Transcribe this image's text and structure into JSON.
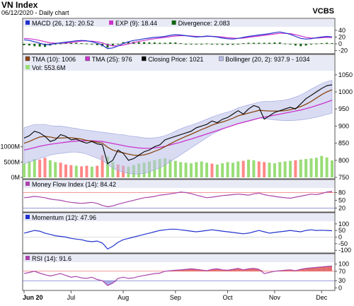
{
  "header": {
    "title": "VN Index",
    "subtitle": "06/12/2020 - Daily chart",
    "brand": "VCBS"
  },
  "chart_data": [
    {
      "type": "line",
      "panel": "macd",
      "legend": [
        "MACD (26, 12): 20.52",
        "EXP (9): 18.44",
        "Divergence: 2.083"
      ],
      "yticks": [
        "40",
        "20",
        "0",
        "-20"
      ],
      "ylim": [
        -25,
        48
      ],
      "colors": {
        "macd": "#2233cc",
        "exp": "#cc33cc",
        "div": "#116611"
      },
      "series": [
        {
          "name": "MACD",
          "values": [
            12,
            10,
            6,
            2,
            -3,
            -2,
            1,
            3,
            5,
            7,
            9,
            10,
            9,
            6,
            2,
            -4,
            -14,
            -12,
            -6,
            1,
            6,
            10,
            12,
            15,
            17,
            19,
            20,
            22,
            25,
            27,
            26,
            24,
            22,
            20,
            21,
            23,
            22,
            20,
            17,
            15,
            14,
            16,
            19,
            22,
            24,
            26,
            28,
            30,
            33,
            35,
            32,
            28,
            22,
            16,
            14,
            15,
            18,
            20,
            22,
            20.52
          ]
        },
        {
          "name": "EXP",
          "values": [
            16,
            15,
            13,
            10,
            6,
            3,
            2,
            2,
            3,
            4,
            6,
            8,
            8,
            8,
            6,
            3,
            -3,
            -6,
            -6,
            -4,
            0,
            4,
            7,
            10,
            13,
            15,
            17,
            19,
            21,
            23,
            24,
            24,
            23,
            22,
            21,
            22,
            22,
            21,
            20,
            18,
            17,
            16,
            17,
            19,
            21,
            23,
            25,
            27,
            29,
            31,
            31,
            30,
            27,
            23,
            19,
            17,
            17,
            18,
            19,
            18.44
          ]
        },
        {
          "name": "Divergence",
          "values": [
            -4,
            -5,
            -7,
            -8,
            -9,
            -5,
            -1,
            1,
            2,
            3,
            3,
            2,
            1,
            -2,
            -4,
            -7,
            -11,
            -6,
            0,
            5,
            6,
            6,
            5,
            5,
            4,
            4,
            3,
            3,
            4,
            4,
            2,
            0,
            -1,
            -2,
            0,
            1,
            0,
            -1,
            -3,
            -3,
            -3,
            0,
            2,
            3,
            3,
            3,
            3,
            3,
            4,
            4,
            1,
            -2,
            -5,
            -7,
            -5,
            -2,
            1,
            2,
            3,
            2.083
          ]
        }
      ]
    },
    {
      "type": "line",
      "panel": "price",
      "legend": [
        "TMA (10): 1006",
        "TMA (25): 976",
        "Closing Price: 1021",
        "Bollinger (20, 2): 937.9 - 1034",
        "Vol: 553.6M"
      ],
      "yticks": [
        "1050",
        "1000",
        "950",
        "900",
        "850",
        "800",
        "750"
      ],
      "ylim": [
        750,
        1060
      ],
      "vol_ticks": [
        "1000M",
        "500M",
        "0M"
      ],
      "vol_max": 1800,
      "colors": {
        "tma10": "#8b4513",
        "tma25": "#cc33cc",
        "close": "#000000",
        "boll": "#b8bde8",
        "vol_up": "#99dd77",
        "vol_down": "#ff8888"
      },
      "series": [
        {
          "name": "Closing Price",
          "values": [
            865,
            872,
            885,
            880,
            870,
            855,
            860,
            875,
            870,
            860,
            862,
            855,
            850,
            855,
            848,
            845,
            790,
            800,
            830,
            820,
            800,
            805,
            815,
            825,
            830,
            840,
            845,
            860,
            865,
            870,
            875,
            880,
            885,
            895,
            900,
            905,
            915,
            910,
            920,
            925,
            935,
            945,
            935,
            950,
            960,
            955,
            920,
            930,
            940,
            945,
            950,
            955,
            950,
            965,
            980,
            990,
            1000,
            1010,
            1018,
            1021
          ]
        },
        {
          "name": "TMA (10)",
          "values": [
            850,
            855,
            862,
            868,
            870,
            868,
            865,
            865,
            866,
            866,
            864,
            862,
            858,
            856,
            853,
            850,
            838,
            830,
            825,
            822,
            818,
            815,
            814,
            816,
            820,
            826,
            832,
            840,
            848,
            856,
            863,
            870,
            876,
            883,
            890,
            896,
            903,
            908,
            912,
            917,
            923,
            930,
            934,
            938,
            942,
            946,
            945,
            944,
            944,
            944,
            945,
            948,
            952,
            957,
            964,
            972,
            982,
            992,
            1000,
            1006
          ]
        },
        {
          "name": "TMA (25)",
          "values": [
            830,
            833,
            837,
            841,
            844,
            847,
            849,
            851,
            853,
            855,
            856,
            857,
            857,
            857,
            856,
            855,
            852,
            849,
            846,
            843,
            840,
            838,
            836,
            835,
            835,
            836,
            838,
            841,
            845,
            849,
            853,
            858,
            862,
            867,
            872,
            877,
            882,
            887,
            892,
            897,
            902,
            907,
            911,
            915,
            919,
            923,
            926,
            929,
            932,
            935,
            938,
            941,
            944,
            947,
            951,
            955,
            960,
            965,
            970,
            976
          ]
        },
        {
          "name": "Bollinger upper",
          "values": [
            895,
            900,
            905,
            905,
            905,
            902,
            900,
            900,
            898,
            895,
            893,
            890,
            888,
            886,
            884,
            882,
            880,
            878,
            876,
            875,
            872,
            870,
            868,
            866,
            865,
            866,
            868,
            872,
            878,
            885,
            892,
            898,
            903,
            908,
            914,
            920,
            926,
            932,
            937,
            941,
            946,
            953,
            958,
            962,
            966,
            970,
            972,
            972,
            973,
            974,
            976,
            980,
            985,
            991,
            999,
            1008,
            1016,
            1024,
            1030,
            1034
          ]
        },
        {
          "name": "Bollinger lower",
          "values": [
            790,
            795,
            800,
            805,
            810,
            815,
            818,
            820,
            822,
            824,
            824,
            822,
            818,
            812,
            806,
            800,
            788,
            778,
            770,
            765,
            762,
            760,
            760,
            762,
            766,
            772,
            778,
            786,
            796,
            806,
            816,
            826,
            836,
            846,
            856,
            866,
            876,
            884,
            891,
            897,
            903,
            908,
            912,
            916,
            920,
            924,
            922,
            920,
            918,
            917,
            916,
            916,
            917,
            918,
            920,
            923,
            926,
            930,
            934,
            937.9
          ]
        },
        {
          "name": "Volume",
          "values": [
            450,
            520,
            600,
            580,
            640,
            560,
            500,
            480,
            420,
            400,
            380,
            360,
            380,
            350,
            380,
            720,
            680,
            500,
            420,
            380,
            350,
            400,
            450,
            480,
            520,
            560,
            600,
            620,
            580,
            540,
            500,
            480,
            460,
            500,
            520,
            480,
            450,
            420,
            460,
            500,
            480,
            520,
            540,
            580,
            560,
            520,
            500,
            480,
            460,
            500,
            520,
            540,
            560,
            580,
            600,
            620,
            640,
            700,
            650,
            553.6
          ],
          "up": [
            1,
            1,
            1,
            0,
            0,
            1,
            1,
            0,
            0,
            0,
            1,
            0,
            0,
            1,
            0,
            0,
            1,
            1,
            0,
            0,
            1,
            1,
            1,
            1,
            1,
            1,
            1,
            1,
            1,
            1,
            1,
            1,
            1,
            1,
            1,
            1,
            0,
            1,
            1,
            1,
            1,
            1,
            0,
            1,
            1,
            0,
            0,
            1,
            1,
            1,
            1,
            1,
            0,
            1,
            1,
            1,
            1,
            1,
            1,
            1
          ]
        }
      ]
    },
    {
      "type": "line",
      "panel": "mfi",
      "legend": [
        "Money Flow Index (14): 84.42"
      ],
      "yticks": [
        "80",
        "50",
        "20"
      ],
      "ylim": [
        10,
        95
      ],
      "levels": [
        80,
        20
      ],
      "colors": {
        "line": "#aa44aa",
        "level": "#ee7777",
        "fill": "#dd5555"
      },
      "series": [
        {
          "name": "Money Flow Index",
          "values": [
            60,
            62,
            65,
            63,
            60,
            55,
            52,
            50,
            45,
            42,
            40,
            38,
            40,
            42,
            38,
            30,
            25,
            28,
            35,
            40,
            45,
            50,
            55,
            60,
            62,
            65,
            70,
            72,
            75,
            78,
            82,
            80,
            76,
            70,
            65,
            60,
            62,
            65,
            68,
            70,
            72,
            74,
            72,
            70,
            75,
            78,
            72,
            68,
            65,
            62,
            60,
            58,
            62,
            66,
            70,
            74,
            72,
            76,
            82,
            84.42
          ]
        }
      ]
    },
    {
      "type": "line",
      "panel": "momentum",
      "legend": [
        "Momentum (12): 47.96"
      ],
      "yticks": [
        "100",
        "50",
        "0",
        "-50",
        "-100"
      ],
      "ylim": [
        -110,
        115
      ],
      "colors": {
        "line": "#2233cc"
      },
      "series": [
        {
          "name": "Momentum",
          "values": [
            30,
            40,
            50,
            45,
            30,
            20,
            10,
            5,
            0,
            -10,
            -15,
            -20,
            -30,
            -35,
            -30,
            -45,
            -90,
            -70,
            -40,
            -20,
            -10,
            0,
            10,
            20,
            30,
            40,
            50,
            55,
            60,
            60,
            55,
            50,
            45,
            40,
            45,
            50,
            55,
            50,
            45,
            40,
            35,
            30,
            25,
            30,
            40,
            50,
            40,
            30,
            35,
            40,
            45,
            50,
            45,
            40,
            50,
            55,
            50,
            52,
            50,
            47.96
          ]
        }
      ]
    },
    {
      "type": "line",
      "panel": "rsi",
      "legend": [
        "RSI (14): 91.6"
      ],
      "yticks": [
        "100",
        "70",
        "30",
        "0"
      ],
      "ylim": [
        -5,
        105
      ],
      "levels": [
        70,
        30
      ],
      "colors": {
        "line": "#aa44aa",
        "level": "#ee7777",
        "fill": "#dd5555"
      },
      "series": [
        {
          "name": "RSI",
          "values": [
            60,
            65,
            70,
            62,
            55,
            50,
            55,
            60,
            52,
            45,
            48,
            42,
            40,
            45,
            35,
            30,
            10,
            20,
            40,
            45,
            40,
            42,
            48,
            52,
            56,
            60,
            62,
            70,
            72,
            74,
            76,
            78,
            80,
            78,
            75,
            72,
            78,
            80,
            76,
            74,
            78,
            82,
            76,
            80,
            82,
            78,
            60,
            65,
            70,
            72,
            74,
            76,
            72,
            78,
            82,
            84,
            86,
            88,
            90,
            91.6
          ]
        }
      ]
    }
  ],
  "x_axis": {
    "labels": [
      "Jun 20",
      "Jul",
      "Aug",
      "Sep",
      "Oct",
      "Nov",
      "Dec"
    ]
  }
}
